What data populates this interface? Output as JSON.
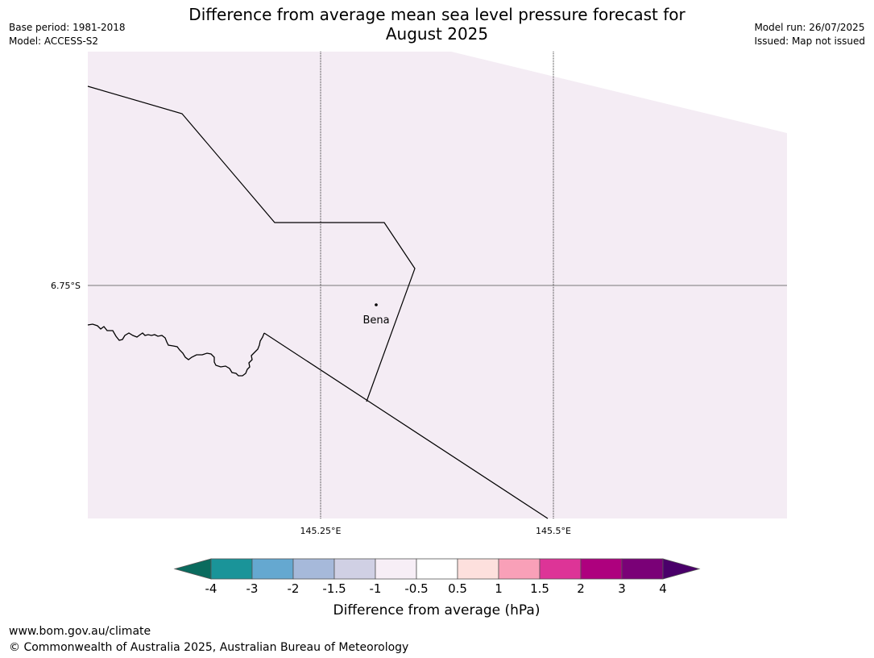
{
  "header": {
    "title_line1": "Difference from average mean sea level pressure forecast for",
    "title_line2": "August 2025",
    "base_period": "Base period: 1981-2018",
    "model": "Model: ACCESS-S2",
    "model_run": "Model run: 26/07/2025",
    "issued": "Issued: Map not issued"
  },
  "map": {
    "background_fill": "#f4ecf4",
    "latitude_labels": [
      "6.75°S"
    ],
    "longitude_labels": [
      "145.25°E",
      "145.5°E"
    ],
    "places": [
      {
        "name": "Bena"
      }
    ]
  },
  "colorbar": {
    "label": "Difference from average (hPa)",
    "ticks": [
      "-4",
      "-3",
      "-2",
      "-1.5",
      "-1",
      "-0.5",
      "0.5",
      "1",
      "1.5",
      "2",
      "3",
      "4"
    ],
    "low_extend_color": "#0a6b5e",
    "colors": [
      "#1a9499",
      "#65a8d0",
      "#a6b9da",
      "#d0d0e4",
      "#f7eef6",
      "#ffffff",
      "#fde0dd",
      "#f9a0b8",
      "#dd3497",
      "#ae017e",
      "#7a0177"
    ],
    "high_extend_color": "#4a006a"
  },
  "footer": {
    "url": "www.bom.gov.au/climate",
    "copyright": "© Commonwealth of Australia 2025, Australian Bureau of Meteorology"
  }
}
